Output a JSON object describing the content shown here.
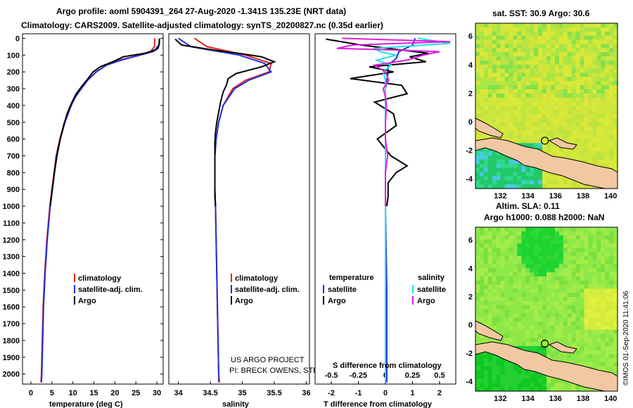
{
  "header": {
    "line1": "Argo profile: aoml 5904391_264 27-Aug-2020 -1.341S 135.23E (NRT data)",
    "line2": "Climatology: CARS2009. Satellite-adjusted climatology: synTS_20200827.nc (0.35d earlier)"
  },
  "colors": {
    "climatology": "#e8201a",
    "satellite": "#1f2fe0",
    "argo": "#000000",
    "sat_salinity": "#19e5e5",
    "argo_salinity": "#e01de0",
    "land": "#f2c8a3",
    "circle": "#000000"
  },
  "depth_ticks": [
    "0",
    "100",
    "200",
    "300",
    "400",
    "500",
    "600",
    "700",
    "800",
    "900",
    "1000",
    "1100",
    "1200",
    "1300",
    "1400",
    "1500",
    "1600",
    "1700",
    "1800",
    "1900",
    "2000"
  ],
  "chart_data": [
    {
      "type": "line",
      "title": "",
      "xlabel": "temperature (deg C)",
      "ylabel": "depth",
      "xlim": [
        -2,
        31.5
      ],
      "ylim": [
        2060,
        0
      ],
      "xticks": [
        "0",
        "5",
        "10",
        "15",
        "20",
        "25",
        "30"
      ],
      "legend": [
        "climatology",
        "satellite-adj. clim.",
        "Argo"
      ],
      "series": [
        {
          "name": "climatology",
          "depth": [
            0,
            50,
            80,
            100,
            130,
            160,
            200,
            250,
            300,
            350,
            400,
            500,
            600,
            700,
            800,
            900,
            1000,
            1200,
            1400,
            1600,
            1800,
            2000,
            2050
          ],
          "values": [
            29.5,
            29.4,
            28.5,
            26,
            21,
            18,
            15.5,
            13.5,
            12,
            10.5,
            9.5,
            8,
            6.9,
            6,
            5.5,
            5,
            4.5,
            3.8,
            3.3,
            2.9,
            2.7,
            2.5,
            2.4
          ]
        },
        {
          "name": "satellite-adj. clim.",
          "depth": [
            0,
            30,
            60,
            80,
            100,
            130,
            160,
            200,
            250,
            300,
            350,
            400,
            500,
            600,
            700,
            800,
            900,
            1000,
            1200,
            1400,
            1600,
            1800,
            2000,
            2050
          ],
          "values": [
            30.6,
            30.6,
            30.3,
            29,
            26,
            21.5,
            18,
            15.6,
            13.5,
            12,
            10.6,
            9.6,
            8.1,
            7,
            6.1,
            5.6,
            5.1,
            4.6,
            3.9,
            3.4,
            3,
            2.8,
            2.6,
            2.5
          ]
        },
        {
          "name": "Argo",
          "depth": [
            5,
            40,
            70,
            90,
            110,
            140,
            170,
            200,
            240,
            280,
            330,
            380,
            450,
            520,
            600,
            700,
            800,
            900,
            1000
          ],
          "values": [
            30.6,
            30.5,
            29.6,
            27,
            22,
            19.5,
            16.5,
            14.8,
            13.6,
            12.3,
            10.8,
            9.8,
            8.6,
            7.8,
            7,
            6.2,
            5.6,
            5.1,
            4.6
          ]
        }
      ]
    },
    {
      "type": "line",
      "xlabel": "salinity",
      "xlim": [
        33.85,
        36.05
      ],
      "ylim": [
        2060,
        0
      ],
      "xticks": [
        "34",
        "34.5",
        "35",
        "35.5",
        "36"
      ],
      "legend": [
        "climatology",
        "satellite-adj. clim.",
        "Argo"
      ],
      "series": [
        {
          "name": "climatology",
          "depth": [
            0,
            50,
            100,
            150,
            200,
            250,
            300,
            400,
            500,
            600,
            700,
            800,
            900,
            1000,
            1200,
            1400,
            1600,
            1800,
            2000,
            2050
          ],
          "values": [
            34.25,
            34.45,
            35.05,
            35.45,
            35.42,
            35.05,
            34.85,
            34.7,
            34.63,
            34.59,
            34.57,
            34.57,
            34.57,
            34.58,
            34.59,
            34.6,
            34.61,
            34.62,
            34.63,
            34.63
          ]
        },
        {
          "name": "satellite-adj. clim.",
          "depth": [
            0,
            50,
            100,
            150,
            200,
            250,
            300,
            400,
            500,
            600,
            700,
            800,
            900,
            1000,
            1200,
            1400,
            1600,
            1800,
            2000,
            2050
          ],
          "values": [
            34.0,
            34.2,
            34.95,
            35.35,
            35.45,
            35.1,
            34.88,
            34.7,
            34.63,
            34.59,
            34.57,
            34.57,
            34.57,
            34.58,
            34.59,
            34.6,
            34.61,
            34.62,
            34.63,
            34.64
          ]
        },
        {
          "name": "Argo",
          "depth": [
            5,
            40,
            70,
            90,
            110,
            140,
            170,
            190,
            210,
            240,
            280,
            320,
            380,
            440,
            500,
            560,
            620,
            700,
            780,
            860,
            940,
            1000
          ],
          "values": [
            33.95,
            34.05,
            34.55,
            34.95,
            35.3,
            35.5,
            35.3,
            35.1,
            34.9,
            34.78,
            34.75,
            34.7,
            34.66,
            34.63,
            34.6,
            34.58,
            34.57,
            34.57,
            34.57,
            34.57,
            34.57,
            34.58
          ]
        }
      ]
    },
    {
      "type": "line",
      "xlabel": "T difference from climatology",
      "xlabel_top": "S difference from climatology",
      "xlim": [
        -2.6,
        2.6
      ],
      "ylim": [
        2060,
        0
      ],
      "xticks": [
        "-2",
        "-1",
        "0",
        "1",
        "2"
      ],
      "xticks_top": [
        "-0.5",
        "-0.25",
        "0",
        "0.25",
        "0.5"
      ],
      "legend_left_title": "temperature",
      "legend_right_title": "salinity",
      "legend_left": [
        "satellite",
        "Argo"
      ],
      "legend_right": [
        "satellite",
        "Argo"
      ],
      "series": [
        {
          "name": "T satellite",
          "depth": [
            0,
            40,
            80,
            120,
            160,
            200,
            300,
            400,
            500,
            600,
            700,
            800,
            1000,
            1500,
            2000,
            2050
          ],
          "values": [
            1.1,
            1.0,
            0.5,
            0.4,
            0.1,
            0.1,
            0.0,
            0.0,
            0.0,
            0.0,
            0.0,
            0.0,
            0.0,
            0.05,
            0.05,
            0.05
          ]
        },
        {
          "name": "T Argo",
          "depth": [
            5,
            40,
            70,
            90,
            110,
            140,
            170,
            200,
            240,
            280,
            330,
            380,
            450,
            520,
            600,
            700,
            760,
            800,
            860,
            940,
            1000
          ],
          "values": [
            -2.2,
            -0.9,
            0.6,
            1.6,
            0.9,
            1.5,
            -0.6,
            0.3,
            -1.3,
            0.6,
            0.8,
            -0.4,
            0.3,
            0.4,
            -0.3,
            0.2,
            0.8,
            0.4,
            0.1,
            0.1,
            0.05
          ]
        },
        {
          "name": "S satellite",
          "depth": [
            0,
            30,
            60,
            80,
            100,
            130,
            160,
            200,
            250,
            300,
            350,
            400,
            500,
            600,
            700,
            800,
            1000,
            1200,
            1500,
            1800,
            2050
          ],
          "values": [
            0.3,
            0.6,
            -0.1,
            -0.05,
            0.1,
            -0.08,
            0.05,
            -0.02,
            0.0,
            0.0,
            0.0,
            0.0,
            0.0,
            0.0,
            0.0,
            0.0,
            0.0,
            0.0,
            0.0,
            0.0,
            0.0
          ]
        },
        {
          "name": "S Argo",
          "depth": [
            0,
            20,
            40,
            60,
            70,
            80,
            100,
            130,
            160,
            200,
            250,
            300,
            350,
            400,
            500,
            600,
            700,
            800,
            900,
            1000
          ],
          "values": [
            -0.4,
            0.6,
            -0.3,
            -0.45,
            0.1,
            0.5,
            0.35,
            0.2,
            -0.1,
            0.0,
            0.03,
            -0.02,
            0.0,
            0.01,
            0.0,
            0.0,
            0.02,
            0.0,
            0.0,
            0.0
          ]
        }
      ]
    },
    {
      "type": "heatmap",
      "title": "sat. SST: 30.9 Argo: 30.6",
      "xticks": [
        "132",
        "134",
        "136",
        "138",
        "140"
      ],
      "yticks": [
        "6",
        "4",
        "2",
        "0",
        "-2",
        "-4"
      ],
      "marker": {
        "lon": 135.23,
        "lat": -1.341
      }
    },
    {
      "type": "heatmap",
      "title_line1": "Altim. SLA: 0.11",
      "title_line2": "Argo h1000: 0.088 h2000: NaN",
      "xticks": [
        "132",
        "134",
        "136",
        "138",
        "140"
      ],
      "yticks": [
        "6",
        "4",
        "2",
        "0",
        "-2",
        "-4"
      ],
      "marker": {
        "lon": 135.23,
        "lat": -1.341
      }
    }
  ],
  "credits": {
    "line1": "US ARGO PROJECT",
    "line2": "PI: BRECK OWENS, STEVE JAYNE, P.E. ROBBINS",
    "stamp": "©IMOS 01-Sep-2020 11:41:06"
  }
}
